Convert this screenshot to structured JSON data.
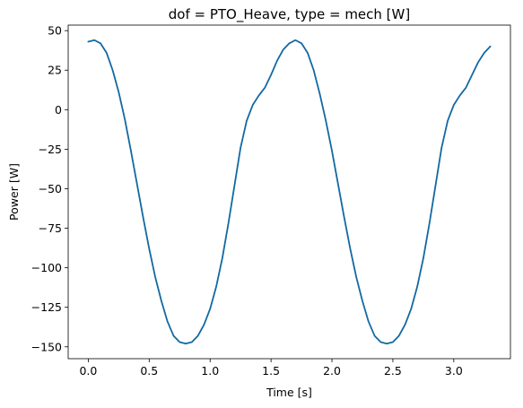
{
  "chart_data": {
    "type": "line",
    "title": "dof = PTO_Heave, type = mech [W]",
    "xlabel": "Time [s]",
    "ylabel": "Power [W]",
    "xlim": [
      -0.165,
      3.465
    ],
    "ylim": [
      -157.5,
      53.5
    ],
    "xticks": [
      0.0,
      0.5,
      1.0,
      1.5,
      2.0,
      2.5,
      3.0
    ],
    "xtick_labels": [
      "0.0",
      "0.5",
      "1.0",
      "1.5",
      "2.0",
      "2.5",
      "3.0"
    ],
    "yticks": [
      50,
      25,
      0,
      -25,
      -50,
      -75,
      -100,
      -125,
      -150
    ],
    "ytick_labels": [
      "50",
      "25",
      "0",
      "−25",
      "−50",
      "−75",
      "−100",
      "−125",
      "−150"
    ],
    "grid": false,
    "legend": "none",
    "series": [
      {
        "color": "#1269a2",
        "x": [
          0.0,
          0.05,
          0.1,
          0.15,
          0.2,
          0.25,
          0.3,
          0.35,
          0.4,
          0.45,
          0.5,
          0.55,
          0.6,
          0.65,
          0.7,
          0.75,
          0.8,
          0.85,
          0.9,
          0.95,
          1.0,
          1.05,
          1.1,
          1.15,
          1.2,
          1.25,
          1.3,
          1.35,
          1.4,
          1.45,
          1.5,
          1.55,
          1.6,
          1.65,
          1.7,
          1.75,
          1.8,
          1.85,
          1.9,
          1.95,
          2.0,
          2.05,
          2.1,
          2.15,
          2.2,
          2.25,
          2.3,
          2.35,
          2.4,
          2.45,
          2.5,
          2.55,
          2.6,
          2.65,
          2.7,
          2.75,
          2.8,
          2.85,
          2.9,
          2.95,
          3.0,
          3.05,
          3.1,
          3.15,
          3.2,
          3.25,
          3.3
        ],
        "y": [
          43,
          44,
          42,
          36,
          25,
          11,
          -6,
          -26,
          -47,
          -68,
          -88,
          -106,
          -121,
          -134,
          -143,
          -147,
          -148,
          -147,
          -143,
          -136,
          -126,
          -112,
          -94,
          -72,
          -48,
          -24,
          -7,
          3,
          9,
          14,
          22,
          31,
          38,
          42,
          44,
          42,
          36,
          25,
          10,
          -7,
          -26,
          -47,
          -68,
          -88,
          -106,
          -121,
          -134,
          -143,
          -147,
          -148,
          -147,
          -143,
          -136,
          -126,
          -112,
          -94,
          -72,
          -48,
          -24,
          -7,
          3,
          9,
          14,
          22,
          30,
          36,
          40
        ]
      }
    ]
  }
}
